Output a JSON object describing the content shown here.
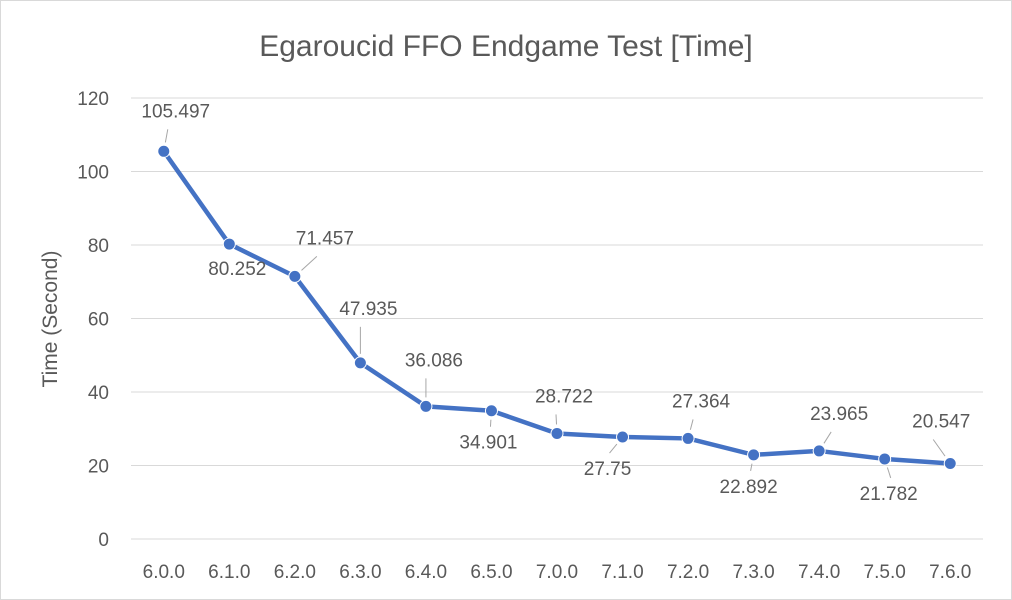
{
  "chart_data": {
    "type": "line",
    "title": "Egaroucid FFO Endgame Test [Time]",
    "xlabel": "",
    "ylabel": "Time (Second)",
    "categories": [
      "6.0.0",
      "6.1.0",
      "6.2.0",
      "6.3.0",
      "6.4.0",
      "6.5.0",
      "7.0.0",
      "7.1.0",
      "7.2.0",
      "7.3.0",
      "7.4.0",
      "7.5.0",
      "7.6.0"
    ],
    "series": [
      {
        "values": [
          105.497,
          80.252,
          71.457,
          47.935,
          36.086,
          34.901,
          28.722,
          27.75,
          27.364,
          22.892,
          23.965,
          21.782,
          20.547
        ],
        "labels": [
          "105.497",
          "80.252",
          "71.457",
          "47.935",
          "36.086",
          "34.901",
          "28.722",
          "27.75",
          "27.364",
          "22.892",
          "23.965",
          "21.782",
          "20.547"
        ],
        "label_position": [
          "above",
          "below",
          "above",
          "above",
          "above",
          "below",
          "above",
          "below",
          "above",
          "below",
          "above",
          "below",
          "above"
        ],
        "color": "#4472C4"
      }
    ],
    "ylim": [
      0,
      120
    ],
    "yticks": [
      "0",
      "20",
      "40",
      "60",
      "80",
      "100",
      "120"
    ],
    "grid": true,
    "legend": "none",
    "gridline_color": "#d9d9d9",
    "text_color": "#595959",
    "leader_line_color": "#a6a6a6"
  }
}
